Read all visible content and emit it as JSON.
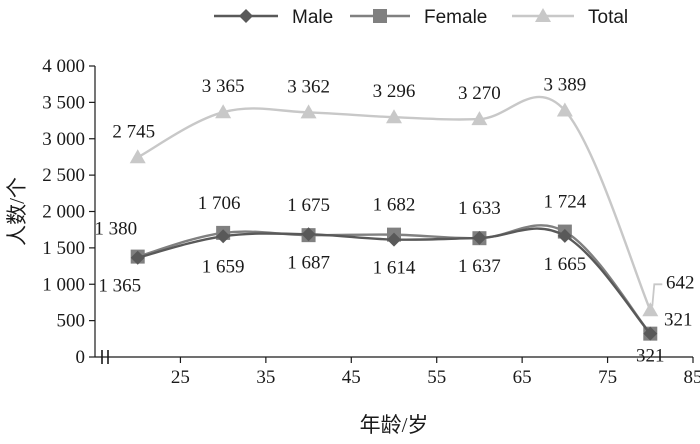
{
  "chart_data": {
    "type": "line",
    "xlabel": "年龄/岁",
    "ylabel": "人数/个",
    "x": [
      20,
      30,
      40,
      50,
      60,
      70,
      80
    ],
    "x_ticks": [
      "25",
      "35",
      "45",
      "55",
      "65",
      "75",
      "85"
    ],
    "y_ticks": [
      "0",
      "500",
      "1 000",
      "1 500",
      "2 000",
      "2 500",
      "3 000",
      "3 500",
      "4 000"
    ],
    "ylim": [
      0,
      4000
    ],
    "xlim": [
      15,
      85
    ],
    "x_axis_break": true,
    "legend_position": "top",
    "series": [
      {
        "name": "Male",
        "marker": "diamond",
        "color": "#595959",
        "values": [
          1365,
          1659,
          1687,
          1614,
          1637,
          1665,
          321
        ]
      },
      {
        "name": "Female",
        "marker": "square",
        "color": "#808080",
        "values": [
          1380,
          1706,
          1675,
          1682,
          1633,
          1724,
          321
        ]
      },
      {
        "name": "Total",
        "marker": "triangle",
        "color": "#c8c8c8",
        "values": [
          2745,
          3365,
          3362,
          3296,
          3270,
          3389,
          642
        ]
      }
    ],
    "point_labels": {
      "male": [
        "1 365",
        "1 659",
        "1 687",
        "1 614",
        "1 637",
        "1 665",
        "321"
      ],
      "female": [
        "1 380",
        "1 706",
        "1 675",
        "1 682",
        "1 633",
        "1 724",
        "321"
      ],
      "total": [
        "2 745",
        "3 365",
        "3 362",
        "3 296",
        "3 270",
        "3 389",
        "642"
      ]
    }
  }
}
